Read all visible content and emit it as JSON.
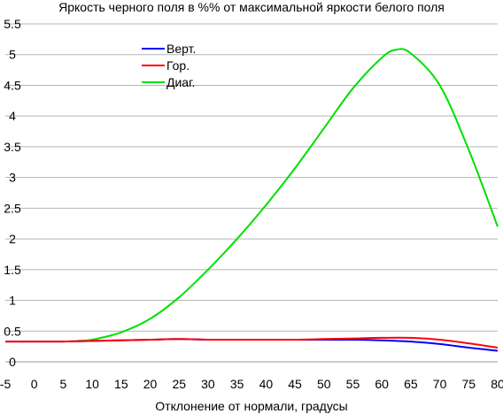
{
  "chart_data": {
    "type": "line",
    "title": "Яркость черного поля в %% от максимальной яркости белого поля",
    "xlabel": "Отклонение от нормали, градусы",
    "ylabel": "",
    "xlim": [
      -5,
      80
    ],
    "ylim": [
      0,
      5.5
    ],
    "x_ticks": [
      "-5",
      "0",
      "5",
      "10",
      "15",
      "20",
      "25",
      "30",
      "35",
      "40",
      "45",
      "50",
      "55",
      "60",
      "65",
      "70",
      "75",
      "80"
    ],
    "y_ticks": [
      "0",
      "0.5",
      "1",
      "1.5",
      "2",
      "2.5",
      "3",
      "3.5",
      "4",
      "4.5",
      "5",
      "5.5"
    ],
    "y_tick_values": [
      0,
      0.5,
      1,
      1.5,
      2,
      2.5,
      3,
      3.5,
      4,
      4.5,
      5,
      5.5
    ],
    "grid": "horizontal",
    "legend_position": "top-left",
    "series": [
      {
        "name": "Верт.",
        "color": "#0000ff",
        "x": [
          -5,
          0,
          5,
          10,
          15,
          20,
          25,
          30,
          35,
          40,
          45,
          50,
          55,
          60,
          65,
          70,
          75,
          80
        ],
        "y": [
          0.33,
          0.33,
          0.33,
          0.34,
          0.35,
          0.36,
          0.37,
          0.36,
          0.36,
          0.36,
          0.36,
          0.36,
          0.36,
          0.35,
          0.33,
          0.29,
          0.23,
          0.18
        ]
      },
      {
        "name": "Гор.",
        "color": "#ff0000",
        "x": [
          -5,
          0,
          5,
          10,
          15,
          20,
          25,
          30,
          35,
          40,
          45,
          50,
          55,
          60,
          65,
          70,
          75,
          80
        ],
        "y": [
          0.33,
          0.33,
          0.33,
          0.34,
          0.35,
          0.36,
          0.37,
          0.36,
          0.36,
          0.36,
          0.36,
          0.37,
          0.38,
          0.39,
          0.39,
          0.36,
          0.3,
          0.23
        ]
      },
      {
        "name": "Диаг.",
        "color": "#00e000",
        "x": [
          7.5,
          10,
          15,
          20,
          25,
          30,
          35,
          40,
          45,
          50,
          55,
          60,
          62.5,
          65,
          70,
          75,
          80
        ],
        "y": [
          0.34,
          0.36,
          0.48,
          0.7,
          1.05,
          1.5,
          2.0,
          2.55,
          3.15,
          3.8,
          4.45,
          4.95,
          5.08,
          5.02,
          4.5,
          3.45,
          2.2
        ]
      }
    ]
  }
}
